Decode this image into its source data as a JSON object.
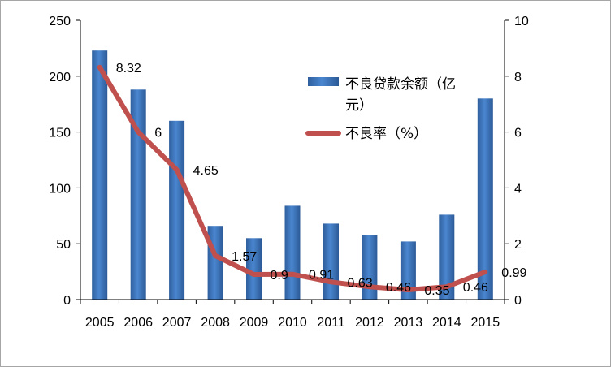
{
  "chart_data": {
    "type": "bar",
    "categories": [
      "2005",
      "2006",
      "2007",
      "2008",
      "2009",
      "2010",
      "2011",
      "2012",
      "2013",
      "2014",
      "2015"
    ],
    "series": [
      {
        "name": "不良贷款余额（亿元）",
        "type": "bar",
        "axis": "left",
        "color": "#3a6fb5",
        "values": [
          223,
          188,
          160,
          66,
          55,
          84,
          68,
          58,
          52,
          76,
          180
        ]
      },
      {
        "name": "不良率（%）",
        "type": "line",
        "axis": "right",
        "color": "#c0504d",
        "values": [
          8.32,
          6,
          4.65,
          1.57,
          0.9,
          0.91,
          0.63,
          0.46,
          0.35,
          0.46,
          0.99
        ],
        "labels": [
          "8.32",
          "6",
          "4.65",
          "1.57",
          "0.9",
          "0.91",
          "0.63",
          "0.46",
          "0.35",
          "0.46",
          "0.99"
        ]
      }
    ],
    "y_left": {
      "min": 0,
      "max": 250,
      "ticks": [
        "0",
        "50",
        "100",
        "150",
        "200",
        "250"
      ]
    },
    "y_right": {
      "min": 0,
      "max": 10,
      "ticks": [
        "0",
        "2",
        "4",
        "6",
        "8",
        "10"
      ]
    },
    "title": "",
    "xlabel": "",
    "ylabel": "",
    "grid": false,
    "legend_position": "top-right"
  }
}
